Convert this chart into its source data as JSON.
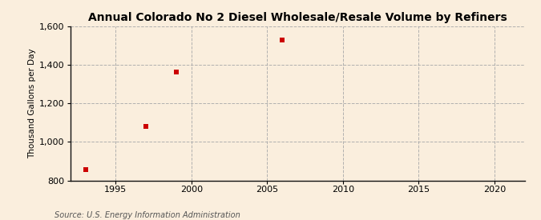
{
  "title": "Annual Colorado No 2 Diesel Wholesale/Resale Volume by Refiners",
  "ylabel": "Thousand Gallons per Day",
  "source": "Source: U.S. Energy Information Administration",
  "x_data": [
    1993,
    1997,
    1999,
    2006
  ],
  "y_data": [
    855,
    1080,
    1365,
    1530
  ],
  "xlim": [
    1992,
    2022
  ],
  "ylim": [
    800,
    1600
  ],
  "yticks": [
    800,
    1000,
    1200,
    1400,
    1600
  ],
  "xticks": [
    1995,
    2000,
    2005,
    2010,
    2015,
    2020
  ],
  "marker_color": "#cc0000",
  "marker": "s",
  "marker_size": 4,
  "bg_color": "#faeedd",
  "grid_color": "#aaaaaa",
  "title_fontsize": 10,
  "label_fontsize": 7.5,
  "tick_fontsize": 8,
  "source_fontsize": 7
}
